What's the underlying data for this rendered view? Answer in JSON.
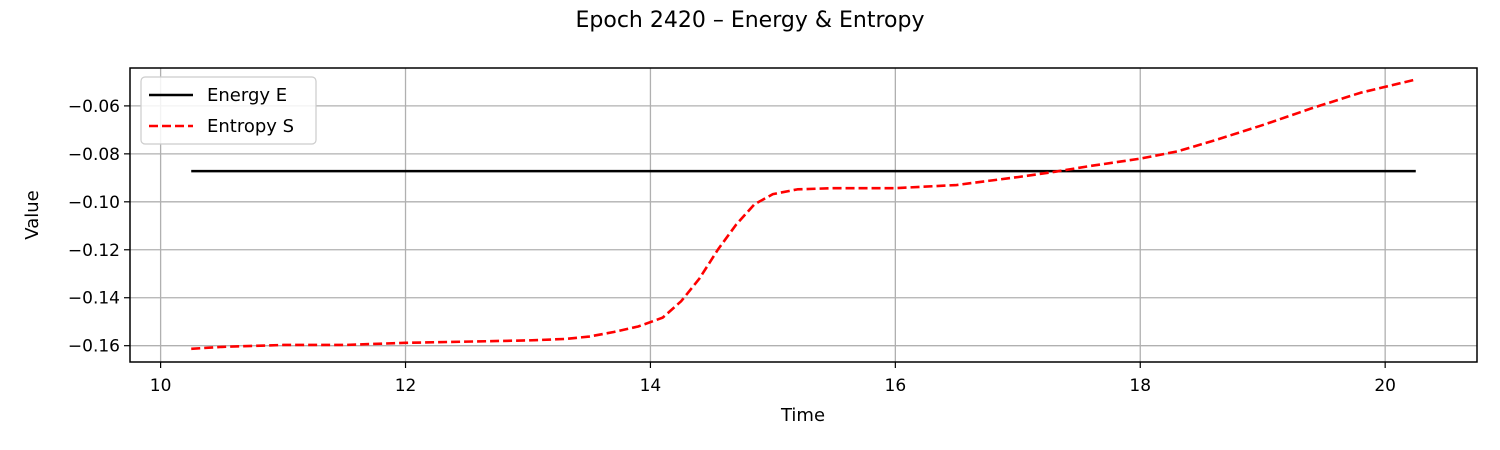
{
  "chart_data": {
    "type": "line",
    "title": "Epoch 2420 – Energy & Entropy",
    "xlabel": "Time",
    "ylabel": "Value",
    "xlim": [
      9.75,
      20.75
    ],
    "ylim": [
      -0.1668,
      -0.0442
    ],
    "xticks": [
      10,
      12,
      14,
      16,
      18,
      20
    ],
    "xtick_labels": [
      "10",
      "12",
      "14",
      "16",
      "18",
      "20"
    ],
    "yticks": [
      -0.16,
      -0.14,
      -0.12,
      -0.1,
      -0.08,
      -0.06
    ],
    "ytick_labels": [
      "−0.16",
      "−0.14",
      "−0.12",
      "−0.10",
      "−0.08",
      "−0.06"
    ],
    "grid": true,
    "legend_position": "upper left",
    "series": [
      {
        "name": "Energy E",
        "color": "#000000",
        "style": "solid",
        "x": [
          10.25,
          20.25
        ],
        "y": [
          -0.0872,
          -0.0872
        ]
      },
      {
        "name": "Entropy S",
        "color": "#ff0000",
        "style": "dashed",
        "x": [
          10.25,
          10.5,
          11.0,
          11.5,
          12.0,
          12.5,
          13.0,
          13.3,
          13.5,
          13.7,
          13.9,
          14.1,
          14.25,
          14.4,
          14.55,
          14.7,
          14.85,
          15.0,
          15.2,
          15.5,
          16.0,
          16.5,
          16.8,
          17.0,
          17.3,
          17.6,
          18.0,
          18.3,
          18.6,
          19.0,
          19.4,
          19.8,
          20.25
        ],
        "y": [
          -0.1613,
          -0.1605,
          -0.1597,
          -0.1597,
          -0.1588,
          -0.1583,
          -0.1578,
          -0.1572,
          -0.1562,
          -0.1543,
          -0.152,
          -0.1483,
          -0.1415,
          -0.132,
          -0.12,
          -0.1095,
          -0.101,
          -0.0968,
          -0.0948,
          -0.0943,
          -0.0943,
          -0.093,
          -0.091,
          -0.0897,
          -0.0875,
          -0.085,
          -0.082,
          -0.079,
          -0.0745,
          -0.068,
          -0.061,
          -0.0545,
          -0.049
        ]
      }
    ]
  }
}
